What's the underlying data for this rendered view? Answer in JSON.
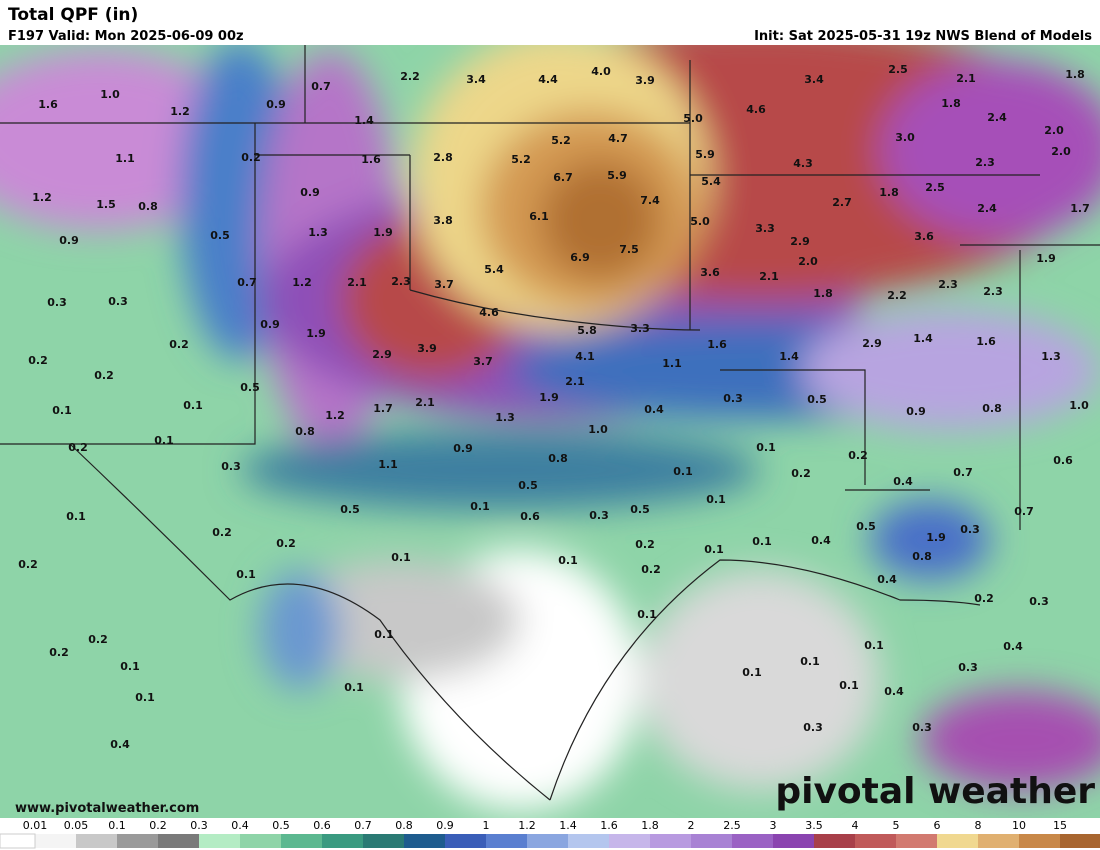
{
  "header": {
    "title": "Total QPF (in)",
    "valid": "F197 Valid: Mon 2025-06-09 00z",
    "init": "Init: Sat 2025-05-31 19z NWS Blend of Models"
  },
  "footer": {
    "url": "www.pivotalweather.com",
    "logo": "pivotal weather"
  },
  "point_labels": [
    "1.6",
    "1.0",
    "1.2",
    "0.9",
    "0.7",
    "1.4",
    "2.2",
    "3.4",
    "4.4",
    "4.0",
    "3.9",
    "5.0",
    "4.6",
    "3.4",
    "2.5",
    "2.1",
    "1.8",
    "1.8",
    "2.4",
    "2.0",
    "2.0",
    "1.1",
    "0.2",
    "1.6",
    "2.8",
    "5.2",
    "5.2",
    "4.7",
    "5.9",
    "5.4",
    "4.3",
    "3.0",
    "2.3",
    "6.7",
    "5.9",
    "7.4",
    "1.2",
    "1.5",
    "0.8",
    "0.9",
    "1.8",
    "2.5",
    "2.7",
    "2.4",
    "1.7",
    "6.1",
    "5.0",
    "3.3",
    "0.9",
    "0.5",
    "1.3",
    "1.9",
    "3.8",
    "2.9",
    "3.6",
    "6.9",
    "7.5",
    "5.4",
    "3.6",
    "2.1",
    "2.0",
    "1.9",
    "0.7",
    "1.2",
    "2.1",
    "2.3",
    "3.7",
    "1.8",
    "2.2",
    "2.3",
    "2.3",
    "0.3",
    "0.3",
    "4.6",
    "0.9",
    "1.9",
    "5.8",
    "3.3",
    "0.2",
    "1.6",
    "1.4",
    "2.9",
    "1.4",
    "1.6",
    "1.3",
    "0.2",
    "2.9",
    "3.9",
    "4.1",
    "3.7",
    "1.1",
    "0.2",
    "0.5",
    "2.1",
    "0.1",
    "0.1",
    "1.2",
    "1.7",
    "2.1",
    "1.9",
    "1.3",
    "0.3",
    "0.5",
    "0.4",
    "0.9",
    "0.8",
    "1.0",
    "0.8",
    "1.0",
    "0.1",
    "0.2",
    "0.1",
    "0.3",
    "1.1",
    "0.9",
    "0.8",
    "0.2",
    "0.2",
    "0.1",
    "0.7",
    "0.6",
    "0.5",
    "0.4",
    "0.1",
    "0.5",
    "0.1",
    "0.6",
    "0.3",
    "0.5",
    "0.1",
    "0.5",
    "0.7",
    "0.2",
    "0.2",
    "0.2",
    "0.1",
    "0.1",
    "0.4",
    "1.9",
    "0.3",
    "0.1",
    "0.1",
    "0.2",
    "0.2",
    "0.1",
    "0.8",
    "0.4",
    "0.2",
    "0.3",
    "0.1",
    "0.1",
    "0.2",
    "0.1",
    "0.2",
    "0.1",
    "0.1",
    "0.4",
    "0.1",
    "0.3",
    "0.1",
    "0.1",
    "0.4",
    "0.1",
    "0.3",
    "0.3",
    "0.4"
  ],
  "legend": {
    "labels": [
      "0.01",
      "0.05",
      "0.1",
      "0.2",
      "0.3",
      "0.4",
      "0.5",
      "0.6",
      "0.7",
      "0.8",
      "0.9",
      "1",
      "1.2",
      "1.4",
      "1.6",
      "1.8",
      "2",
      "2.5",
      "3",
      "3.5",
      "4",
      "5",
      "6",
      "8",
      "10",
      "15"
    ],
    "colors": [
      "#f4f4f4",
      "#c8c8c8",
      "#9a9a9a",
      "#7a7a7a",
      "#b4ecc4",
      "#8ed4a8",
      "#5cb890",
      "#3a9a80",
      "#2a7a74",
      "#1e5c8e",
      "#3a5eb8",
      "#5a7fd0",
      "#8aa6e0",
      "#b4c6ee",
      "#c6b6ea",
      "#b89ae0",
      "#a882d4",
      "#9a62c4",
      "#8a44b0",
      "#a8404a",
      "#c05a5a",
      "#d27a70",
      "#f0d890",
      "#e0b070",
      "#c88848",
      "#a86630"
    ]
  }
}
